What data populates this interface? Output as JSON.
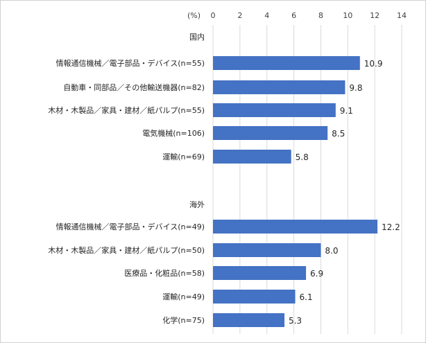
{
  "chart_data": {
    "type": "bar",
    "orientation": "horizontal",
    "unit": "(%)",
    "xlim": [
      0,
      14
    ],
    "ticks": [
      0,
      2,
      4,
      6,
      8,
      10,
      12,
      14
    ],
    "grid": true,
    "bar_color": "#4472C4",
    "groups": [
      {
        "name": "国内",
        "categories": [
          "情報通信機械／電子部品・デバイス(n=55)",
          "自動車・同部品／その他輸送機器(n=82)",
          "木材・木製品／家具・建材／紙パルプ(n=55)",
          "電気機械(n=106)",
          "運輸(n=69)"
        ],
        "values": [
          10.9,
          9.8,
          9.1,
          8.5,
          5.8
        ],
        "value_labels": [
          "10.9",
          "9.8",
          "9.1",
          "8.5",
          "5.8"
        ]
      },
      {
        "name": "海外",
        "categories": [
          "情報通信機械／電子部品・デバイス(n=49)",
          "木材・木製品／家具・建材／紙パルプ(n=50)",
          "医療品・化粧品(n=58)",
          "運輸(n=49)",
          "化学(n=75)"
        ],
        "values": [
          12.2,
          8.0,
          6.9,
          6.1,
          5.3
        ],
        "value_labels": [
          "12.2",
          "8.0",
          "6.9",
          "6.1",
          "5.3"
        ]
      }
    ]
  }
}
